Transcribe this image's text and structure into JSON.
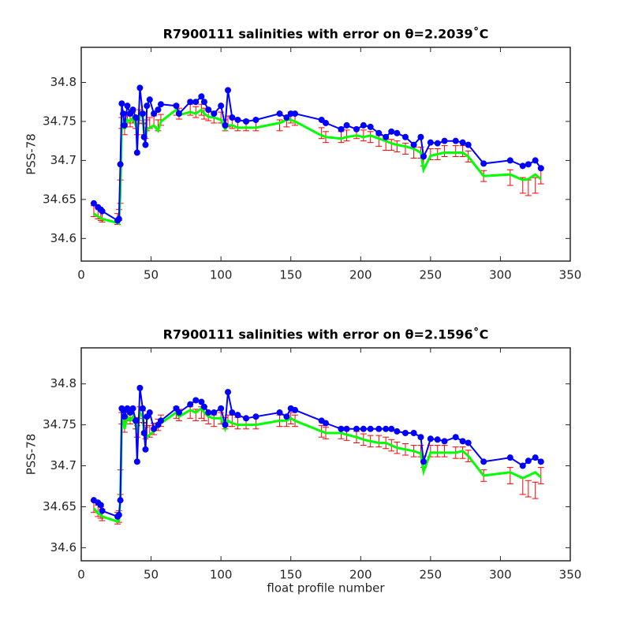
{
  "chart_data": [
    {
      "type": "line",
      "title": "R7900111 salinities with error on θ=2.2039˚C",
      "ylabel": "PSS-78",
      "xlim": [
        0,
        350
      ],
      "xticks": [
        0,
        50,
        100,
        150,
        200,
        250,
        300,
        350
      ],
      "ylim": [
        34.571,
        34.845
      ],
      "yticks": [
        34.6,
        34.65,
        34.7,
        34.75,
        34.8
      ],
      "x": [
        9,
        12,
        14,
        15,
        26,
        27,
        28,
        29,
        30,
        31,
        33,
        35,
        37,
        39,
        40,
        42,
        44,
        45,
        46,
        47,
        49,
        52,
        55,
        57,
        68,
        70,
        78,
        82,
        86,
        88,
        91,
        95,
        100,
        103,
        105,
        108,
        112,
        118,
        125,
        142,
        147,
        150,
        153,
        172,
        175,
        186,
        190,
        197,
        202,
        207,
        213,
        218,
        222,
        226,
        232,
        238,
        243,
        245,
        250,
        255,
        260,
        268,
        273,
        277,
        288,
        307,
        316,
        320,
        325,
        329
      ],
      "series": [
        {
          "color": "#0000ff",
          "values": [
            34.645,
            34.64,
            34.637,
            34.635,
            34.623,
            34.625,
            34.695,
            34.773,
            34.76,
            34.745,
            34.77,
            34.76,
            34.765,
            34.755,
            34.71,
            34.793,
            34.76,
            34.73,
            34.72,
            34.77,
            34.778,
            34.76,
            34.765,
            34.772,
            34.77,
            34.76,
            34.775,
            34.775,
            34.782,
            34.775,
            34.765,
            34.76,
            34.77,
            34.745,
            34.79,
            34.755,
            34.752,
            34.75,
            34.752,
            34.76,
            34.755,
            34.76,
            34.76,
            34.752,
            34.748,
            34.74,
            34.745,
            34.74,
            34.745,
            34.743,
            34.735,
            34.73,
            34.737,
            34.735,
            34.73,
            34.72,
            34.73,
            34.705,
            34.723,
            34.722,
            34.725,
            34.725,
            34.723,
            34.72,
            34.696,
            34.7,
            34.693,
            34.695,
            34.7,
            34.69
          ]
        },
        {
          "color": "#00ff00",
          "values": [
            34.632,
            34.628,
            34.626,
            34.625,
            34.62,
            34.619,
            34.66,
            34.75,
            34.752,
            34.74,
            34.752,
            34.75,
            34.755,
            34.745,
            34.74,
            34.76,
            34.755,
            34.735,
            34.73,
            34.74,
            34.742,
            34.745,
            34.738,
            34.75,
            34.765,
            34.758,
            34.762,
            34.76,
            34.765,
            34.76,
            34.756,
            34.755,
            34.752,
            34.74,
            34.745,
            34.745,
            34.742,
            34.742,
            34.742,
            34.748,
            34.752,
            34.752,
            34.75,
            34.732,
            34.73,
            34.728,
            34.73,
            34.732,
            34.73,
            34.732,
            34.728,
            34.725,
            34.722,
            34.72,
            34.718,
            34.715,
            34.71,
            34.688,
            34.706,
            34.708,
            34.71,
            34.71,
            34.71,
            34.705,
            34.68,
            34.682,
            34.675,
            34.676,
            34.682,
            34.676
          ]
        },
        {
          "color": "#ff0000",
          "values": [
            34.635,
            34.632,
            34.63,
            34.628,
            34.625,
            34.63,
            34.66,
            34.748,
            34.752,
            34.74,
            34.755,
            34.75,
            34.755,
            34.748,
            34.74,
            34.758,
            34.755,
            34.74,
            34.735,
            34.745,
            34.748,
            34.75,
            34.745,
            34.752,
            34.765,
            34.76,
            34.765,
            34.762,
            34.765,
            34.76,
            34.758,
            34.755,
            34.755,
            34.745,
            34.75,
            34.748,
            34.745,
            34.745,
            34.745,
            34.745,
            34.75,
            34.755,
            34.752,
            34.735,
            34.73,
            34.73,
            34.732,
            34.735,
            34.732,
            34.73,
            34.725,
            34.72,
            34.72,
            34.718,
            34.715,
            34.71,
            34.71,
            34.7,
            34.708,
            34.708,
            34.712,
            34.712,
            34.712,
            34.705,
            34.68,
            34.678,
            34.668,
            34.665,
            34.668,
            34.68
          ],
          "errors": [
            0.007,
            0.007,
            0.007,
            0.007,
            0.007,
            0.007,
            0.015,
            0.007,
            0.007,
            0.007,
            0.007,
            0.007,
            0.007,
            0.007,
            0.007,
            0.007,
            0.007,
            0.007,
            0.007,
            0.007,
            0.007,
            0.007,
            0.007,
            0.007,
            0.007,
            0.007,
            0.007,
            0.007,
            0.007,
            0.007,
            0.007,
            0.007,
            0.007,
            0.007,
            0.007,
            0.007,
            0.007,
            0.007,
            0.007,
            0.007,
            0.007,
            0.007,
            0.007,
            0.007,
            0.007,
            0.007,
            0.007,
            0.007,
            0.007,
            0.007,
            0.007,
            0.007,
            0.007,
            0.007,
            0.007,
            0.007,
            0.007,
            0.007,
            0.007,
            0.007,
            0.007,
            0.007,
            0.007,
            0.007,
            0.007,
            0.01,
            0.01,
            0.01,
            0.01,
            0.01
          ]
        }
      ]
    },
    {
      "type": "line",
      "title": "R7900111 salinities with error on θ=2.1596˚C",
      "ylabel": "PSS-78",
      "xlabel": "float profile number",
      "xlim": [
        0,
        350
      ],
      "xticks": [
        0,
        50,
        100,
        150,
        200,
        250,
        300,
        350
      ],
      "ylim": [
        34.584,
        34.844
      ],
      "yticks": [
        34.6,
        34.65,
        34.7,
        34.75,
        34.8
      ],
      "x": [
        9,
        12,
        14,
        15,
        26,
        27,
        28,
        29,
        30,
        31,
        33,
        35,
        37,
        39,
        40,
        42,
        44,
        45,
        46,
        47,
        49,
        52,
        55,
        57,
        68,
        70,
        78,
        82,
        86,
        88,
        91,
        95,
        100,
        103,
        105,
        108,
        112,
        118,
        125,
        142,
        147,
        150,
        153,
        172,
        175,
        186,
        190,
        197,
        202,
        207,
        213,
        218,
        222,
        226,
        232,
        238,
        243,
        245,
        250,
        255,
        260,
        268,
        273,
        277,
        288,
        307,
        316,
        320,
        325,
        329
      ],
      "series": [
        {
          "color": "#0000ff",
          "values": [
            34.658,
            34.655,
            34.652,
            34.645,
            34.638,
            34.64,
            34.658,
            34.77,
            34.768,
            34.76,
            34.77,
            34.765,
            34.77,
            34.755,
            34.705,
            34.795,
            34.77,
            34.74,
            34.72,
            34.76,
            34.765,
            34.745,
            34.75,
            34.755,
            34.77,
            34.765,
            34.775,
            34.78,
            34.778,
            34.772,
            34.765,
            34.765,
            34.77,
            34.75,
            34.79,
            34.765,
            34.762,
            34.758,
            34.76,
            34.765,
            34.76,
            34.77,
            34.768,
            34.755,
            34.752,
            34.745,
            34.745,
            34.745,
            34.745,
            34.745,
            34.745,
            34.745,
            34.745,
            34.742,
            34.74,
            34.74,
            34.735,
            34.705,
            34.733,
            34.732,
            34.73,
            34.735,
            34.73,
            34.728,
            34.705,
            34.71,
            34.7,
            34.706,
            34.71,
            34.705
          ]
        },
        {
          "color": "#00ff00",
          "values": [
            34.648,
            34.642,
            34.64,
            34.638,
            34.632,
            34.633,
            34.66,
            34.755,
            34.758,
            34.745,
            34.76,
            34.755,
            34.76,
            34.75,
            34.74,
            34.765,
            34.76,
            34.74,
            34.735,
            34.735,
            34.738,
            34.742,
            34.748,
            34.752,
            34.765,
            34.76,
            34.768,
            34.765,
            34.77,
            34.765,
            34.76,
            34.758,
            34.758,
            34.745,
            34.755,
            34.752,
            34.75,
            34.75,
            34.75,
            34.755,
            34.755,
            34.758,
            34.755,
            34.742,
            34.74,
            34.74,
            34.738,
            34.735,
            34.732,
            34.73,
            34.728,
            34.728,
            34.725,
            34.722,
            34.72,
            34.718,
            34.715,
            34.693,
            34.716,
            34.716,
            34.716,
            34.716,
            34.718,
            34.712,
            34.688,
            34.692,
            34.685,
            34.688,
            34.692,
            34.686
          ]
        },
        {
          "color": "#ff0000",
          "values": [
            34.65,
            34.645,
            34.643,
            34.64,
            34.636,
            34.638,
            34.68,
            34.758,
            34.758,
            34.748,
            34.762,
            34.758,
            34.762,
            34.752,
            34.742,
            34.765,
            34.76,
            34.745,
            34.74,
            34.742,
            34.742,
            34.745,
            34.75,
            34.755,
            34.765,
            34.762,
            34.765,
            34.762,
            34.765,
            34.762,
            34.758,
            34.755,
            34.758,
            34.752,
            34.755,
            34.755,
            34.752,
            34.752,
            34.752,
            34.755,
            34.755,
            34.758,
            34.755,
            34.742,
            34.74,
            34.74,
            34.738,
            34.735,
            34.732,
            34.73,
            34.73,
            34.728,
            34.725,
            34.722,
            34.72,
            34.718,
            34.718,
            34.705,
            34.718,
            34.718,
            34.718,
            34.716,
            34.716,
            34.712,
            34.688,
            34.688,
            34.675,
            34.672,
            34.67,
            34.688
          ],
          "errors": [
            0.007,
            0.007,
            0.007,
            0.007,
            0.007,
            0.007,
            0.015,
            0.007,
            0.007,
            0.007,
            0.007,
            0.007,
            0.007,
            0.007,
            0.007,
            0.007,
            0.007,
            0.007,
            0.007,
            0.007,
            0.007,
            0.007,
            0.007,
            0.007,
            0.007,
            0.007,
            0.007,
            0.007,
            0.007,
            0.007,
            0.007,
            0.007,
            0.007,
            0.007,
            0.007,
            0.007,
            0.007,
            0.007,
            0.007,
            0.007,
            0.007,
            0.007,
            0.007,
            0.007,
            0.007,
            0.007,
            0.007,
            0.007,
            0.007,
            0.007,
            0.007,
            0.007,
            0.007,
            0.007,
            0.007,
            0.007,
            0.007,
            0.007,
            0.007,
            0.007,
            0.007,
            0.007,
            0.007,
            0.007,
            0.007,
            0.01,
            0.01,
            0.01,
            0.01,
            0.01
          ]
        }
      ]
    }
  ]
}
